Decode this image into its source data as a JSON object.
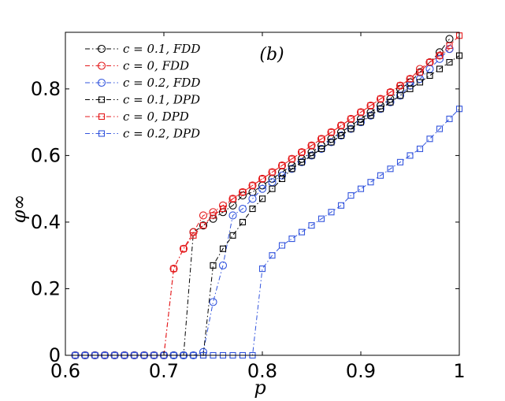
{
  "chart_data": {
    "type": "line",
    "annotation": "(b)",
    "xlabel": "p",
    "ylabel": "φ∞",
    "xlim": [
      0.6,
      1.0
    ],
    "ylim": [
      0,
      0.97
    ],
    "xticks": [
      0.6,
      0.7,
      0.8,
      0.9,
      1.0
    ],
    "xtick_labels": [
      "0.6",
      "0.7",
      "0.8",
      "0.9",
      "1"
    ],
    "yticks": [
      0,
      0.2,
      0.4,
      0.6,
      0.8
    ],
    "ytick_labels": [
      "0",
      "0.2",
      "0.4",
      "0.6",
      "0.8"
    ],
    "legend_position": "top-left",
    "series": [
      {
        "name": "c = 0.1, FDD",
        "color": "#000000",
        "marker": "circle",
        "x": [
          0.61,
          0.62,
          0.63,
          0.64,
          0.65,
          0.66,
          0.67,
          0.68,
          0.69,
          0.7,
          0.71,
          0.72,
          0.73,
          0.74,
          0.75,
          0.76,
          0.77,
          0.78,
          0.79,
          0.8,
          0.81,
          0.82,
          0.83,
          0.84,
          0.85,
          0.86,
          0.87,
          0.88,
          0.89,
          0.9,
          0.91,
          0.92,
          0.93,
          0.94,
          0.95,
          0.96,
          0.97,
          0.98,
          0.99
        ],
        "y": [
          0,
          0,
          0,
          0,
          0,
          0,
          0,
          0,
          0,
          0,
          0,
          0,
          0.37,
          0.39,
          0.41,
          0.43,
          0.45,
          0.48,
          0.49,
          0.51,
          0.53,
          0.55,
          0.57,
          0.59,
          0.61,
          0.63,
          0.65,
          0.67,
          0.69,
          0.71,
          0.73,
          0.75,
          0.77,
          0.8,
          0.82,
          0.85,
          0.88,
          0.91,
          0.95
        ]
      },
      {
        "name": "c = 0, FDD",
        "color": "#e41a1c",
        "marker": "circle",
        "x": [
          0.61,
          0.62,
          0.63,
          0.64,
          0.65,
          0.66,
          0.67,
          0.68,
          0.69,
          0.7,
          0.71,
          0.72,
          0.73,
          0.74,
          0.75,
          0.76,
          0.77,
          0.78,
          0.79,
          0.8,
          0.81,
          0.82,
          0.83,
          0.84,
          0.85,
          0.86,
          0.87,
          0.88,
          0.89,
          0.9,
          0.91,
          0.92,
          0.93,
          0.94,
          0.95,
          0.96,
          0.97,
          0.98,
          0.99
        ],
        "y": [
          0,
          0,
          0,
          0,
          0,
          0,
          0,
          0,
          0,
          0,
          0.26,
          0.32,
          0.37,
          0.42,
          0.43,
          0.45,
          0.47,
          0.49,
          0.51,
          0.53,
          0.55,
          0.57,
          0.59,
          0.61,
          0.63,
          0.65,
          0.67,
          0.69,
          0.71,
          0.73,
          0.75,
          0.77,
          0.79,
          0.81,
          0.83,
          0.86,
          0.88,
          0.9,
          0.92
        ]
      },
      {
        "name": "c = 0.2, FDD",
        "color": "#3355dd",
        "marker": "circle",
        "x": [
          0.61,
          0.62,
          0.63,
          0.64,
          0.65,
          0.66,
          0.67,
          0.68,
          0.69,
          0.7,
          0.71,
          0.72,
          0.73,
          0.74,
          0.75,
          0.76,
          0.77,
          0.78,
          0.79,
          0.8,
          0.81,
          0.82,
          0.83,
          0.84,
          0.85,
          0.86,
          0.87,
          0.88,
          0.89,
          0.9,
          0.91,
          0.92,
          0.93,
          0.94,
          0.95,
          0.96,
          0.97,
          0.98,
          0.99
        ],
        "y": [
          0,
          0,
          0,
          0,
          0,
          0,
          0,
          0,
          0,
          0,
          0,
          0,
          0,
          0.01,
          0.16,
          0.27,
          0.42,
          0.44,
          0.47,
          0.5,
          0.52,
          0.54,
          0.56,
          0.58,
          0.6,
          0.62,
          0.64,
          0.66,
          0.68,
          0.7,
          0.72,
          0.74,
          0.76,
          0.78,
          0.81,
          0.83,
          0.86,
          0.89,
          0.92
        ]
      },
      {
        "name": "c = 0.1, DPD",
        "color": "#000000",
        "marker": "square",
        "x": [
          0.61,
          0.62,
          0.63,
          0.64,
          0.65,
          0.66,
          0.67,
          0.68,
          0.69,
          0.7,
          0.71,
          0.72,
          0.73,
          0.74,
          0.75,
          0.76,
          0.77,
          0.78,
          0.79,
          0.8,
          0.81,
          0.82,
          0.83,
          0.84,
          0.85,
          0.86,
          0.87,
          0.88,
          0.89,
          0.9,
          0.91,
          0.92,
          0.93,
          0.94,
          0.95,
          0.96,
          0.97,
          0.98,
          0.99,
          1.0
        ],
        "y": [
          0,
          0,
          0,
          0,
          0,
          0,
          0,
          0,
          0,
          0,
          0,
          0,
          0,
          0,
          0.27,
          0.32,
          0.36,
          0.4,
          0.44,
          0.47,
          0.5,
          0.53,
          0.56,
          0.58,
          0.6,
          0.62,
          0.64,
          0.66,
          0.68,
          0.7,
          0.72,
          0.74,
          0.76,
          0.78,
          0.8,
          0.82,
          0.84,
          0.86,
          0.88,
          0.9
        ]
      },
      {
        "name": "c = 0, DPD",
        "color": "#e41a1c",
        "marker": "square",
        "x": [
          0.61,
          0.62,
          0.63,
          0.64,
          0.65,
          0.66,
          0.67,
          0.68,
          0.69,
          0.7,
          0.71,
          0.72,
          0.73,
          0.74,
          0.75,
          0.76,
          0.77,
          0.78,
          0.79,
          0.8,
          0.81,
          0.82,
          0.83,
          0.84,
          0.85,
          0.86,
          0.87,
          0.88,
          0.89,
          0.9,
          0.91,
          0.92,
          0.93,
          0.94,
          0.95,
          0.96,
          0.97,
          0.98,
          0.99,
          1.0
        ],
        "y": [
          0,
          0,
          0,
          0,
          0,
          0,
          0,
          0,
          0,
          0,
          0.26,
          0.32,
          0.36,
          0.39,
          0.42,
          0.44,
          0.47,
          0.49,
          0.51,
          0.53,
          0.55,
          0.57,
          0.59,
          0.61,
          0.63,
          0.65,
          0.67,
          0.69,
          0.71,
          0.73,
          0.75,
          0.77,
          0.79,
          0.81,
          0.83,
          0.85,
          0.88,
          0.9,
          0.93,
          0.96
        ]
      },
      {
        "name": "c = 0.2, DPD",
        "color": "#3355dd",
        "marker": "square",
        "x": [
          0.61,
          0.62,
          0.63,
          0.64,
          0.65,
          0.66,
          0.67,
          0.68,
          0.69,
          0.7,
          0.71,
          0.72,
          0.73,
          0.74,
          0.75,
          0.76,
          0.77,
          0.78,
          0.79,
          0.8,
          0.81,
          0.82,
          0.83,
          0.84,
          0.85,
          0.86,
          0.87,
          0.88,
          0.89,
          0.9,
          0.91,
          0.92,
          0.93,
          0.94,
          0.95,
          0.96,
          0.97,
          0.98,
          0.99,
          1.0
        ],
        "y": [
          0,
          0,
          0,
          0,
          0,
          0,
          0,
          0,
          0,
          0,
          0,
          0,
          0,
          0,
          0,
          0,
          0,
          0,
          0,
          0.26,
          0.3,
          0.33,
          0.35,
          0.37,
          0.39,
          0.41,
          0.43,
          0.45,
          0.48,
          0.5,
          0.52,
          0.54,
          0.56,
          0.58,
          0.6,
          0.62,
          0.65,
          0.68,
          0.71,
          0.74
        ]
      }
    ]
  }
}
